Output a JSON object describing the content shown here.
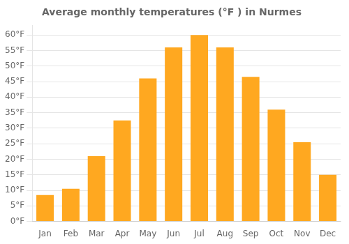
{
  "chart_data": {
    "type": "bar",
    "title": "Average monthly temperatures (°F ) in Nurmes",
    "categories": [
      "Jan",
      "Feb",
      "Mar",
      "Apr",
      "May",
      "Jun",
      "Jul",
      "Aug",
      "Sep",
      "Oct",
      "Nov",
      "Dec"
    ],
    "values": [
      8.5,
      10.5,
      21.0,
      32.5,
      46.0,
      56.0,
      60.0,
      56.0,
      46.5,
      36.0,
      25.5,
      15.0
    ],
    "color": "#FFA820",
    "ylim": [
      0,
      63
    ],
    "yticks": [
      {
        "value": 0,
        "label": "0°F"
      },
      {
        "value": 5,
        "label": "5°F"
      },
      {
        "value": 10,
        "label": "10°F"
      },
      {
        "value": 15,
        "label": "15°F"
      },
      {
        "value": 20,
        "label": "20°F"
      },
      {
        "value": 25,
        "label": "25°F"
      },
      {
        "value": 30,
        "label": "30°F"
      },
      {
        "value": 35,
        "label": "35°F"
      },
      {
        "value": 40,
        "label": "40°F"
      },
      {
        "value": 45,
        "label": "45°F"
      },
      {
        "value": 50,
        "label": "50°F"
      },
      {
        "value": 55,
        "label": "55°F"
      },
      {
        "value": 60,
        "label": "60°F"
      }
    ],
    "grid": true
  }
}
